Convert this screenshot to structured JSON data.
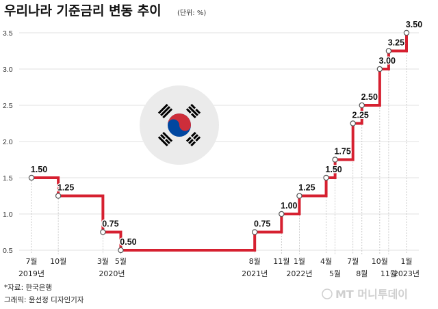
{
  "title": "우리나라 기준금리 변동 추이",
  "unit_note": "(단위: %)",
  "source": "*자료: 한국은행",
  "credit": "그래픽: 윤선정 디자인기자",
  "watermark": "MT 머니투데이",
  "colors": {
    "line": "#d62030",
    "grid": "#d9d9d9",
    "flag_red": "#cd2e3a",
    "flag_blue": "#0047a0",
    "flag_black": "#000000"
  },
  "chart_data": {
    "type": "line",
    "step": true,
    "ylim": [
      0.5,
      3.5
    ],
    "yticks": [
      "0.5",
      "1.0",
      "1.5",
      "2.0",
      "2.5",
      "3.0",
      "3.5"
    ],
    "points": [
      {
        "month": "2019-07",
        "value": 1.5,
        "label": "1.50"
      },
      {
        "month": "2019-10",
        "value": 1.25,
        "label": "1.25"
      },
      {
        "month": "2020-03",
        "value": 0.75,
        "label": "0.75"
      },
      {
        "month": "2020-05",
        "value": 0.5,
        "label": "0.50"
      },
      {
        "month": "2021-08",
        "value": 0.75,
        "label": "0.75"
      },
      {
        "month": "2021-11",
        "value": 1.0,
        "label": "1.00"
      },
      {
        "month": "2022-01",
        "value": 1.25,
        "label": "1.25"
      },
      {
        "month": "2022-04",
        "value": 1.5,
        "label": "1.50"
      },
      {
        "month": "2022-05",
        "value": 1.75,
        "label": "1.75"
      },
      {
        "month": "2022-07",
        "value": 2.25,
        "label": "2.25"
      },
      {
        "month": "2022-08",
        "value": 2.5,
        "label": "2.50"
      },
      {
        "month": "2022-10",
        "value": 3.0,
        "label": "3.00"
      },
      {
        "month": "2022-11",
        "value": 3.25,
        "label": "3.25"
      },
      {
        "month": "2023-01",
        "value": 3.5,
        "label": "3.50"
      }
    ],
    "xlabels": [
      {
        "month": "2019-07",
        "text": "7월",
        "row": 1
      },
      {
        "month": "2019-10",
        "text": "10월",
        "row": 1
      },
      {
        "month": "2019-07",
        "text": "2019년",
        "row": 2
      },
      {
        "month": "2020-03",
        "text": "3월",
        "row": 1
      },
      {
        "month": "2020-05",
        "text": "5월",
        "row": 1
      },
      {
        "month": "2020-04",
        "text": "2020년",
        "row": 2
      },
      {
        "month": "2021-08",
        "text": "8월",
        "row": 1
      },
      {
        "month": "2021-08",
        "text": "2021년",
        "row": 2
      },
      {
        "month": "2021-11",
        "text": "11월",
        "row": 1
      },
      {
        "month": "2022-01",
        "text": "1월",
        "row": 1
      },
      {
        "month": "2022-01",
        "text": "2022년",
        "row": 2
      },
      {
        "month": "2022-04",
        "text": "4월",
        "row": 1
      },
      {
        "month": "2022-05",
        "text": "5월",
        "row": 2
      },
      {
        "month": "2022-07",
        "text": "7월",
        "row": 1
      },
      {
        "month": "2022-08",
        "text": "8월",
        "row": 2
      },
      {
        "month": "2022-10",
        "text": "10월",
        "row": 1
      },
      {
        "month": "2022-11",
        "text": "11월",
        "row": 2
      },
      {
        "month": "2023-01",
        "text": "1월",
        "row": 1
      },
      {
        "month": "2023-01",
        "text": "2023년",
        "row": 2
      }
    ]
  }
}
